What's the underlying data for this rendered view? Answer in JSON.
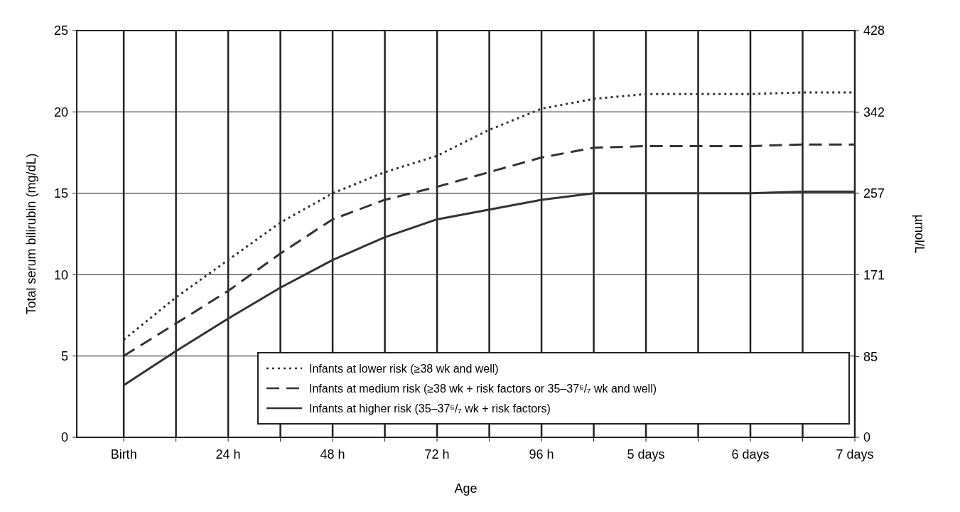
{
  "chart_data": {
    "type": "line",
    "xlabel": "Age",
    "ylabel": "Total serum bilirubin (mg/dL)",
    "y2label": "µmol/L",
    "categories": [
      "Birth",
      null,
      "24 h",
      null,
      "48 h",
      null,
      "72 h",
      null,
      "96 h",
      null,
      "5 days",
      null,
      "6 days",
      null,
      "7 days"
    ],
    "ylim": [
      0,
      25
    ],
    "yticks": [
      0,
      5,
      10,
      15,
      20,
      25
    ],
    "y2lim": [
      0,
      428
    ],
    "y2ticks": [
      0,
      85,
      171,
      257,
      342,
      428
    ],
    "grid": true,
    "legend": "bottom right",
    "series": [
      {
        "name": "Infants at lower risk (≥38 wk and well)",
        "color": "#333333",
        "line_style": "dotted",
        "values": [
          6.0,
          8.6,
          10.9,
          13.2,
          15.0,
          16.3,
          17.3,
          18.9,
          20.2,
          20.8,
          21.1,
          21.1,
          21.1,
          21.2,
          21.2
        ]
      },
      {
        "name": "Infants at medium risk (≥38 wk + risk factors or 35–37⁶/₇ wk and well)",
        "color": "#333333",
        "line_style": "dashed",
        "values": [
          5.0,
          7.0,
          9.0,
          11.3,
          13.4,
          14.6,
          15.4,
          16.3,
          17.2,
          17.8,
          17.9,
          17.9,
          17.9,
          18.0,
          18.0
        ]
      },
      {
        "name": "Infants at higher risk (35–37⁶/₇ wk + risk factors)",
        "color": "#333333",
        "line_style": "solid",
        "values": [
          3.2,
          5.3,
          7.3,
          9.2,
          10.9,
          12.3,
          13.4,
          14.0,
          14.6,
          15.0,
          15.0,
          15.0,
          15.0,
          15.1,
          15.1
        ]
      }
    ]
  }
}
